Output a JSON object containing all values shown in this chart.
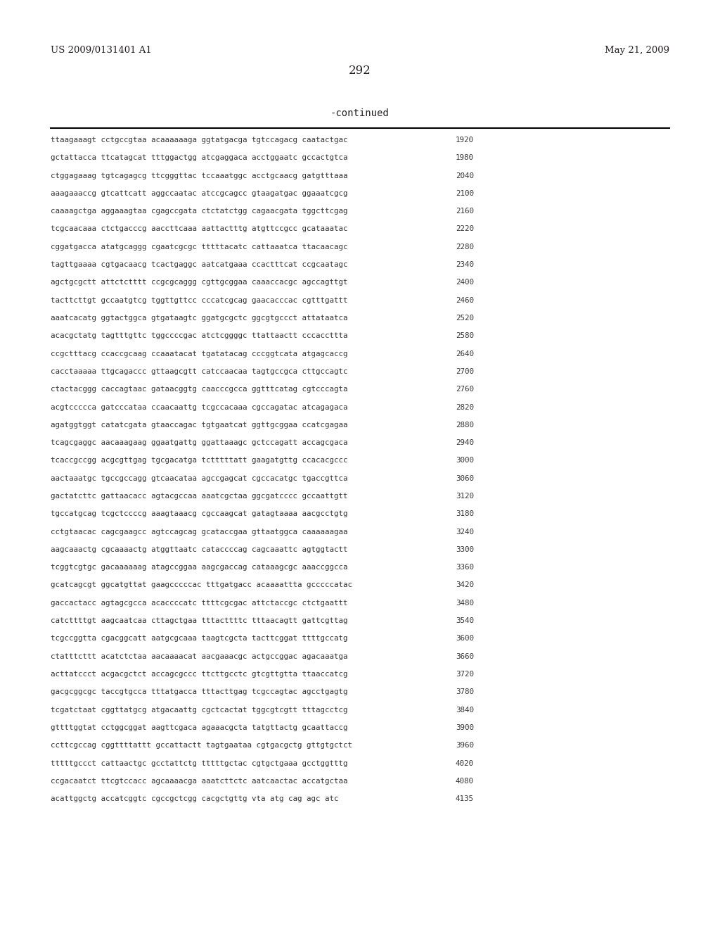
{
  "header_left": "US 2009/0131401 A1",
  "header_right": "May 21, 2009",
  "page_number": "292",
  "continued_label": "-continued",
  "background_color": "#ffffff",
  "text_color": "#231f20",
  "sequence_color": "#333333",
  "font_size_header": 9.5,
  "font_size_page": 12,
  "font_size_continued": 10,
  "font_size_sequence": 7.8,
  "sequence_lines": [
    [
      "ttaagaaagt cctgccgtaa acaaaaaaga ggtatgacga tgtccagacg caatactgac",
      "1920"
    ],
    [
      "gctattacca ttcatagcat tttggactgg atcgaggaca acctggaatc gccactgtca",
      "1980"
    ],
    [
      "ctggagaaag tgtcagagcg ttcgggttac tccaaatggc acctgcaacg gatgtttaaa",
      "2040"
    ],
    [
      "aaagaaaccg gtcattcatt aggccaatac atccgcagcc gtaagatgac ggaaatcgcg",
      "2100"
    ],
    [
      "caaaagctga aggaaagtaa cgagccgata ctctatctgg cagaacgata tggcttcgag",
      "2160"
    ],
    [
      "tcgcaacaaa ctctgacccg aaccttcaaa aattactttg atgttccgcc gcataaatac",
      "2220"
    ],
    [
      "cggatgacca atatgcaggg cgaatcgcgc tttttacatc cattaaatca ttacaacagc",
      "2280"
    ],
    [
      "tagttgaaaa cgtgacaacg tcactgaggc aatcatgaaa ccactttcat ccgcaatagc",
      "2340"
    ],
    [
      "agctgcgctt attctctttt ccgcgcaggg cgttgcggaa caaaccacgc agccagttgt",
      "2400"
    ],
    [
      "tacttcttgt gccaatgtcg tggttgttcc cccatcgcag gaacacccac cgtttgattt",
      "2460"
    ],
    [
      "aaatcacatg ggtactggca gtgataagtc ggatgcgctc ggcgtgccct attataatca",
      "2520"
    ],
    [
      "acacgctatg tagtttgttc tggccccgac atctcggggc ttattaactt cccaccttta",
      "2580"
    ],
    [
      "ccgctttacg ccaccgcaag ccaaatacat tgatatacag cccggtcata atgagcaccg",
      "2640"
    ],
    [
      "cacctaaaaa ttgcagaccc gttaagcgtt catccaacaa tagtgccgca cttgccagtc",
      "2700"
    ],
    [
      "ctactacggg caccagtaac gataacggtg caacccgcca ggtttcatag cgtcccagta",
      "2760"
    ],
    [
      "acgtccccca gatcccataa ccaacaattg tcgccacaaa cgccagatac atcagagaca",
      "2820"
    ],
    [
      "agatggtggt catatcgata gtaaccagac tgtgaatcat ggttgcggaa ccatcgagaa",
      "2880"
    ],
    [
      "tcagcgaggc aacaaagaag ggaatgattg ggattaaagc gctccagatt accagcgaca",
      "2940"
    ],
    [
      "tcaccgccgg acgcgttgag tgcgacatga tctttttatt gaagatgttg ccacacgccc",
      "3000"
    ],
    [
      "aactaaatgc tgccgccagg gtcaacataa agccgagcat cgccacatgc tgaccgttca",
      "3060"
    ],
    [
      "gactatcttc gattaacacc agtacgccaa aaatcgctaa ggcgatcccc gccaattgtt",
      "3120"
    ],
    [
      "tgccatgcag tcgctccccg aaagtaaacg cgccaagcat gatagtaaaa aacgcctgtg",
      "3180"
    ],
    [
      "cctgtaacac cagcgaagcc agtccagcag gcataccgaa gttaatggca caaaaaagaa",
      "3240"
    ],
    [
      "aagcaaactg cgcaaaactg atggttaatc cataccccag cagcaaattc agtggtactt",
      "3300"
    ],
    [
      "tcggtcgtgc gacaaaaaag atagccggaa aagcgaccag cataaagcgc aaaccggcca",
      "3360"
    ],
    [
      "gcatcagcgt ggcatgttat gaagcccccac tttgatgacc acaaaattta gcccccatac",
      "3420"
    ],
    [
      "gaccactacc agtagcgcca acaccccatc ttttcgcgac attctaccgc ctctgaattt",
      "3480"
    ],
    [
      "catcttttgt aagcaatcaa cttagctgaa tttacttttc tttaacagtt gattcgttag",
      "3540"
    ],
    [
      "tcgccggtta cgacggcatt aatgcgcaaa taagtcgcta tacttcggat ttttgccatg",
      "3600"
    ],
    [
      "ctatttcttt acatctctaa aacaaaacat aacgaaacgc actgccggac agacaaatga",
      "3660"
    ],
    [
      "acttatccct acgacgctct accagcgccc ttcttgcctc gtcgttgtta ttaaccatcg",
      "3720"
    ],
    [
      "gacgcggcgc taccgtgcca tttatgacca tttacttgag tcgccagtac agcctgagtg",
      "3780"
    ],
    [
      "tcgatctaat cggttatgcg atgacaattg cgctcactat tggcgtcgtt tttagcctcg",
      "3840"
    ],
    [
      "gttttggtat cctggcggat aagttcgaca agaaacgcta tatgttactg gcaattaccg",
      "3900"
    ],
    [
      "ccttcgccag cggttttattt gccattactt tagtgaataa cgtgacgctg gttgtgctct",
      "3960"
    ],
    [
      "tttttgccct cattaactgc gcctattctg tttttgctac cgtgctgaaa gcctggtttg",
      "4020"
    ],
    [
      "ccgacaatct ttcgtccacc agcaaaacga aaatcttctc aatcaactac accatgctaa",
      "4080"
    ],
    [
      "acattggctg accatcggtc cgccgctcgg cacgctgttg vta atg cag agc atc",
      "4135"
    ]
  ]
}
